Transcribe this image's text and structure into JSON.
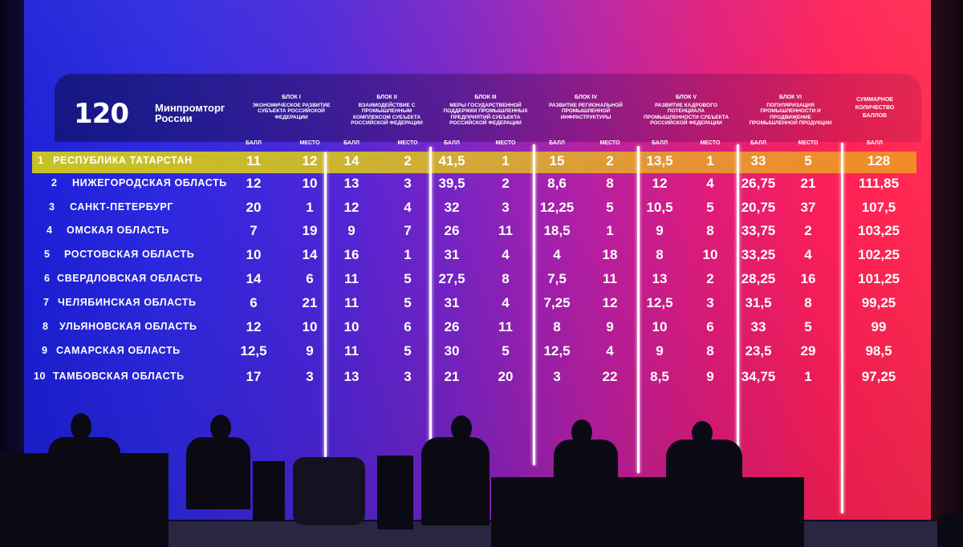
{
  "logo": {
    "number": "120",
    "line1": "Минпромторг",
    "line2": "России"
  },
  "blocks": [
    {
      "title": "БЛОК I",
      "desc": "Экономическое развитие субъекта Российской Федерации"
    },
    {
      "title": "БЛОК II",
      "desc": "Взаимодействие с промышленным комплексом субъекта Российской Федерации"
    },
    {
      "title": "БЛОК III",
      "desc": "Меры государственной поддержки промышленных предприятий субъекта Российской Федерации"
    },
    {
      "title": "БЛОК IV",
      "desc": "Развитие региональной промышленной инфраструктуры"
    },
    {
      "title": "БЛОК V",
      "desc": "Развитие кадрового потенциала промышленности субъекта Российской Федерации"
    },
    {
      "title": "БЛОК VI",
      "desc": "Популяризация промышленности и продвижение промышленной продукции"
    }
  ],
  "total_header": "Суммарное количество баллов",
  "subheaders": {
    "score": "БАЛЛ",
    "place": "МЕСТО"
  },
  "rows": [
    {
      "rank": "1",
      "name": "РЕСПУБЛИКА ТАТАРСТАН",
      "cells": [
        "11",
        "12",
        "14",
        "2",
        "41,5",
        "1",
        "15",
        "2",
        "13,5",
        "1",
        "33",
        "5"
      ],
      "total": "128"
    },
    {
      "rank": "2",
      "name": "НИЖЕГОРОДСКАЯ ОБЛАСТЬ",
      "cells": [
        "12",
        "10",
        "13",
        "3",
        "39,5",
        "2",
        "8,6",
        "8",
        "12",
        "4",
        "26,75",
        "21"
      ],
      "total": "111,85"
    },
    {
      "rank": "3",
      "name": "САНКТ-ПЕТЕРБУРГ",
      "cells": [
        "20",
        "1",
        "12",
        "4",
        "32",
        "3",
        "12,25",
        "5",
        "10,5",
        "5",
        "20,75",
        "37"
      ],
      "total": "107,5"
    },
    {
      "rank": "4",
      "name": "ОМСКАЯ ОБЛАСТЬ",
      "cells": [
        "7",
        "19",
        "9",
        "7",
        "26",
        "11",
        "18,5",
        "1",
        "9",
        "8",
        "33,75",
        "2"
      ],
      "total": "103,25"
    },
    {
      "rank": "5",
      "name": "РОСТОВСКАЯ ОБЛАСТЬ",
      "cells": [
        "10",
        "14",
        "16",
        "1",
        "31",
        "4",
        "4",
        "18",
        "8",
        "10",
        "33,25",
        "4"
      ],
      "total": "102,25"
    },
    {
      "rank": "6",
      "name": "СВЕРДЛОВСКАЯ ОБЛАСТЬ",
      "cells": [
        "14",
        "6",
        "11",
        "5",
        "27,5",
        "8",
        "7,5",
        "11",
        "13",
        "2",
        "28,25",
        "16"
      ],
      "total": "101,25"
    },
    {
      "rank": "7",
      "name": "ЧЕЛЯБИНСКАЯ ОБЛАСТЬ",
      "cells": [
        "6",
        "21",
        "11",
        "5",
        "31",
        "4",
        "7,25",
        "12",
        "12,5",
        "3",
        "31,5",
        "8"
      ],
      "total": "99,25"
    },
    {
      "rank": "8",
      "name": "УЛЬЯНОВСКАЯ ОБЛАСТЬ",
      "cells": [
        "12",
        "10",
        "10",
        "6",
        "26",
        "11",
        "8",
        "9",
        "10",
        "6",
        "33",
        "5"
      ],
      "total": "99"
    },
    {
      "rank": "9",
      "name": "САМАРСКАЯ ОБЛАСТЬ",
      "cells": [
        "12,5",
        "9",
        "11",
        "5",
        "30",
        "5",
        "12,5",
        "4",
        "9",
        "8",
        "23,5",
        "29"
      ],
      "total": "98,5"
    },
    {
      "rank": "10",
      "name": "ТАМБОВСКАЯ ОБЛАСТЬ",
      "cells": [
        "17",
        "3",
        "13",
        "3",
        "21",
        "20",
        "3",
        "22",
        "8,5",
        "9",
        "34,75",
        "1"
      ],
      "total": "97,25"
    }
  ],
  "colors": {
    "highlight": "#c8bd2c",
    "screen_left": "#1b1fd6",
    "screen_right": "#ff2a50"
  }
}
